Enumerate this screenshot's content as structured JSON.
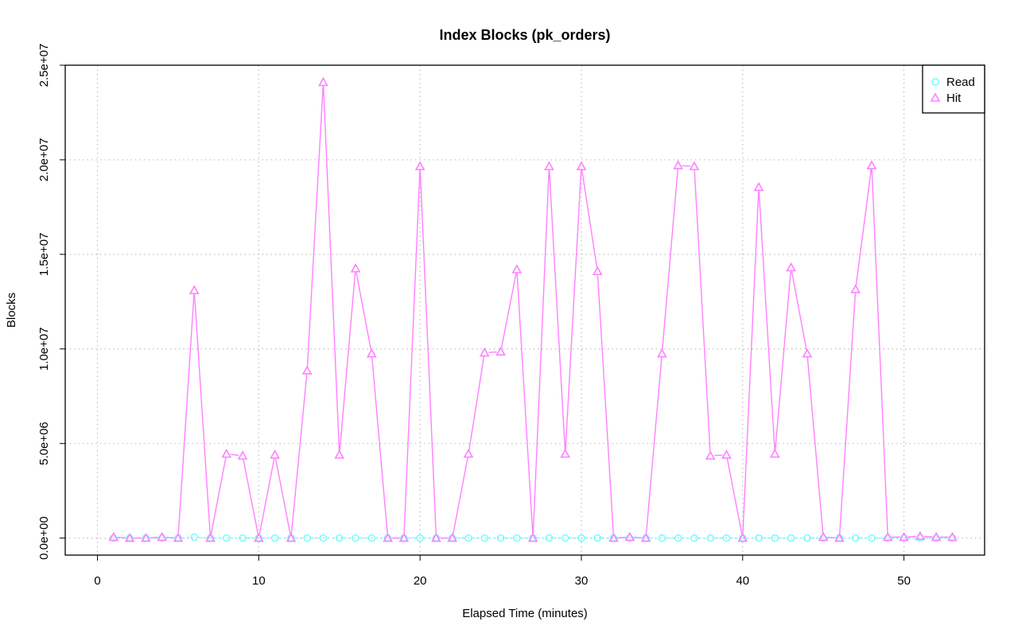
{
  "chart_data": {
    "type": "line",
    "title": "Index Blocks (pk_orders)",
    "xlabel": "Elapsed Time (minutes)",
    "ylabel": "Blocks",
    "xlim": [
      -2,
      55
    ],
    "ylim": [
      -900000,
      25000000
    ],
    "x_ticks": [
      0,
      10,
      20,
      30,
      40,
      50
    ],
    "x_tick_labels": [
      "0",
      "10",
      "20",
      "30",
      "40",
      "50"
    ],
    "y_ticks": [
      0,
      5000000,
      10000000,
      15000000,
      20000000,
      25000000
    ],
    "y_tick_labels": [
      "0.0e+00",
      "5.0e+06",
      "1.0e+07",
      "1.5e+07",
      "2.0e+07",
      "2.5e+07"
    ],
    "grid": true,
    "legend_position": "top-right",
    "x": [
      1,
      2,
      3,
      4,
      5,
      6,
      7,
      8,
      9,
      10,
      11,
      12,
      13,
      14,
      15,
      16,
      17,
      18,
      19,
      20,
      21,
      22,
      23,
      24,
      25,
      26,
      27,
      28,
      29,
      30,
      31,
      32,
      33,
      34,
      35,
      36,
      37,
      38,
      39,
      40,
      41,
      42,
      43,
      44,
      45,
      46,
      47,
      48,
      49,
      50,
      51,
      52,
      53
    ],
    "series": [
      {
        "name": "Read",
        "color": "#66ffff",
        "marker": "circle",
        "values": [
          0,
          0,
          0,
          0,
          0,
          50000,
          0,
          0,
          0,
          0,
          0,
          0,
          0,
          0,
          0,
          0,
          0,
          0,
          0,
          0,
          0,
          0,
          0,
          0,
          0,
          0,
          0,
          0,
          0,
          0,
          0,
          0,
          0,
          0,
          0,
          0,
          0,
          0,
          0,
          0,
          0,
          0,
          0,
          0,
          0,
          0,
          0,
          0,
          0,
          0,
          0,
          0,
          0
        ]
      },
      {
        "name": "Hit",
        "color": "#ff80ff",
        "marker": "triangle",
        "values": [
          50000,
          0,
          0,
          50000,
          0,
          13100000,
          0,
          4450000,
          4350000,
          0,
          4400000,
          0,
          8850000,
          24100000,
          4400000,
          14250000,
          9750000,
          0,
          0,
          19650000,
          0,
          0,
          4450000,
          9800000,
          9850000,
          14200000,
          0,
          19650000,
          4450000,
          19650000,
          14100000,
          0,
          50000,
          0,
          9750000,
          19700000,
          19650000,
          4350000,
          4400000,
          0,
          18550000,
          4450000,
          14300000,
          9750000,
          50000,
          0,
          13150000,
          19700000,
          50000,
          50000,
          100000,
          50000,
          50000
        ]
      }
    ]
  }
}
